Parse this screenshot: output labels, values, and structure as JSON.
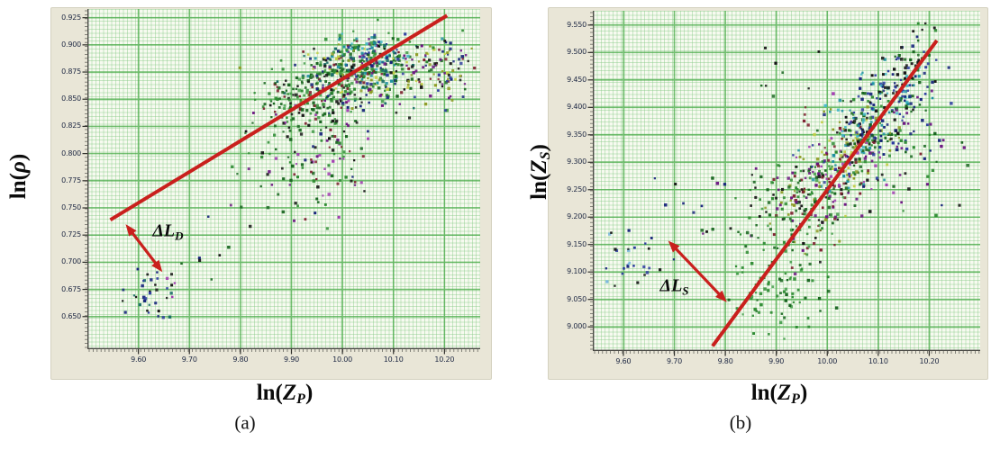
{
  "seed": 1337,
  "colors": {
    "page_bg": "#ffffff",
    "panel_bg": "#e9e6d7",
    "panel_border": "#d4d1bf",
    "plot_bg": "#f7faf0",
    "grid_minor": "#82c882",
    "grid_major": "#46aa46",
    "axis": "#4a4a45",
    "tick_text": "#1d2742",
    "red": "#c9201d",
    "text": "#0b0b0b"
  },
  "palette": [
    "#18651f",
    "#2e8b33",
    "#4aa050",
    "#176b65",
    "#1b8fa0",
    "#45b8c8",
    "#15227a",
    "#2b3a9e",
    "#141414",
    "#6a1480",
    "#a03ab0",
    "#7c1f2e",
    "#8c9a22",
    "#c2ce45",
    "#79b7dd"
  ],
  "point_size": {
    "min": 2.2,
    "max": 3.6
  },
  "chart_data": [
    {
      "id": "a",
      "type": "scatter",
      "caption": "(a)",
      "xlabel": {
        "pre": "ln(",
        "var": "Z",
        "sub": "P",
        "post": ")"
      },
      "ylabel": {
        "pre": "ln(",
        "var": "ρ",
        "sub": "",
        "post": ")"
      },
      "xlim": [
        9.5,
        10.27
      ],
      "ylim": [
        0.62,
        0.933
      ],
      "xticks": [
        "9.60",
        "9.70",
        "9.80",
        "9.90",
        "10.00",
        "10.10",
        "10.20"
      ],
      "yticks": [
        "0.925",
        "0.900",
        "0.875",
        "0.850",
        "0.825",
        "0.800",
        "0.775",
        "0.750",
        "0.725",
        "0.700",
        "0.675",
        "0.650"
      ],
      "grid": true,
      "legend": null,
      "trend_line": {
        "x1": 9.545,
        "y1": 0.739,
        "x2": 10.205,
        "y2": 0.927
      },
      "annotation": {
        "arrow": {
          "x1": 9.575,
          "y1": 0.735,
          "x2": 9.647,
          "y2": 0.691
        },
        "label": {
          "pre": "Δ",
          "var": "L",
          "sub": "D",
          "x": 9.658,
          "y": 0.728
        }
      },
      "clusters": [
        {
          "cx": 10.03,
          "cy": 0.872,
          "sx": 0.055,
          "sy": 0.016,
          "n": 380,
          "colors": [
            0,
            1,
            1,
            2,
            0,
            3,
            12,
            11,
            9,
            6,
            8,
            13,
            4
          ]
        },
        {
          "cx": 9.925,
          "cy": 0.85,
          "sx": 0.04,
          "sy": 0.014,
          "n": 140,
          "colors": [
            0,
            1,
            2,
            0,
            8,
            11
          ]
        },
        {
          "cx": 10.06,
          "cy": 0.893,
          "sx": 0.035,
          "sy": 0.009,
          "n": 70,
          "colors": [
            4,
            5,
            3,
            7,
            1
          ]
        },
        {
          "cx": 10.16,
          "cy": 0.873,
          "sx": 0.05,
          "sy": 0.014,
          "n": 90,
          "colors": [
            6,
            8,
            9,
            12,
            13,
            0,
            11,
            7
          ]
        },
        {
          "cx": 9.975,
          "cy": 0.805,
          "sx": 0.04,
          "sy": 0.032,
          "n": 100,
          "colors": [
            0,
            8,
            9,
            10,
            1,
            11,
            6
          ]
        },
        {
          "cx": 9.87,
          "cy": 0.8,
          "sx": 0.05,
          "sy": 0.03,
          "n": 45,
          "colors": [
            0,
            1,
            8,
            9
          ]
        },
        {
          "cx": 9.613,
          "cy": 0.668,
          "sx": 0.022,
          "sy": 0.013,
          "n": 30,
          "colors": [
            6,
            8,
            7,
            3
          ]
        },
        {
          "cx": 9.665,
          "cy": 0.673,
          "sx": 0.012,
          "sy": 0.008,
          "n": 7,
          "colors": [
            9,
            10,
            8
          ]
        },
        {
          "cx": 9.75,
          "cy": 0.705,
          "sx": 0.04,
          "sy": 0.02,
          "n": 9,
          "colors": [
            8,
            0,
            6
          ]
        },
        {
          "cx": 10.21,
          "cy": 0.887,
          "sx": 0.03,
          "sy": 0.012,
          "n": 25,
          "colors": [
            9,
            6,
            8,
            12,
            1
          ]
        }
      ]
    },
    {
      "id": "b",
      "type": "scatter",
      "caption": "(b)",
      "xlabel": {
        "pre": "ln(",
        "var": "Z",
        "sub": "P",
        "post": ")"
      },
      "ylabel": {
        "pre": "ln(",
        "var": "Z",
        "sub": "S",
        "post": ")"
      },
      "xlim": [
        9.54,
        10.3
      ],
      "ylim": [
        8.956,
        9.576
      ],
      "xticks": [
        "9.60",
        "9.70",
        "9.80",
        "9.90",
        "10.00",
        "10.10",
        "10.20"
      ],
      "yticks": [
        "9.550",
        "9.500",
        "9.450",
        "9.400",
        "9.350",
        "9.300",
        "9.250",
        "9.200",
        "9.150",
        "9.100",
        "9.050",
        "9.000"
      ],
      "grid": true,
      "legend": null,
      "trend_line": {
        "x1": 9.775,
        "y1": 8.965,
        "x2": 10.215,
        "y2": 9.522
      },
      "annotation": {
        "arrow": {
          "x1": 9.688,
          "y1": 9.157,
          "x2": 9.803,
          "y2": 9.045
        },
        "label": {
          "pre": "Δ",
          "var": "L",
          "sub": "S",
          "x": 9.7,
          "y": 9.073
        }
      },
      "clusters": [
        {
          "cx": 9.965,
          "cy": 9.225,
          "sx": 0.04,
          "sy": 0.038,
          "n": 150,
          "colors": [
            0,
            1,
            2,
            9,
            11,
            8,
            12
          ]
        },
        {
          "cx": 10.03,
          "cy": 9.3,
          "sx": 0.042,
          "sy": 0.04,
          "n": 200,
          "colors": [
            0,
            1,
            12,
            9,
            10,
            11,
            4,
            7,
            8,
            13
          ]
        },
        {
          "cx": 10.08,
          "cy": 9.365,
          "sx": 0.038,
          "sy": 0.035,
          "n": 150,
          "colors": [
            0,
            1,
            4,
            5,
            7,
            6,
            12,
            8
          ]
        },
        {
          "cx": 10.13,
          "cy": 9.425,
          "sx": 0.033,
          "sy": 0.03,
          "n": 90,
          "colors": [
            7,
            6,
            5,
            4,
            8,
            0
          ]
        },
        {
          "cx": 10.17,
          "cy": 9.465,
          "sx": 0.028,
          "sy": 0.028,
          "n": 40,
          "colors": [
            6,
            8,
            7,
            0
          ]
        },
        {
          "cx": 10.16,
          "cy": 9.33,
          "sx": 0.05,
          "sy": 0.05,
          "n": 60,
          "colors": [
            6,
            8,
            0,
            1,
            9
          ]
        },
        {
          "cx": 9.895,
          "cy": 9.21,
          "sx": 0.05,
          "sy": 0.05,
          "n": 60,
          "colors": [
            0,
            1,
            8,
            9
          ]
        },
        {
          "cx": 9.885,
          "cy": 9.08,
          "sx": 0.04,
          "sy": 0.05,
          "n": 65,
          "colors": [
            0,
            1,
            2,
            1
          ]
        },
        {
          "cx": 9.95,
          "cy": 9.05,
          "sx": 0.04,
          "sy": 0.03,
          "n": 20,
          "colors": [
            0,
            1
          ]
        },
        {
          "cx": 9.612,
          "cy": 9.115,
          "sx": 0.033,
          "sy": 0.026,
          "n": 28,
          "colors": [
            6,
            8,
            14,
            7
          ]
        },
        {
          "cx": 9.72,
          "cy": 9.23,
          "sx": 0.03,
          "sy": 0.03,
          "n": 8,
          "colors": [
            8,
            6
          ]
        },
        {
          "cx": 10.19,
          "cy": 9.545,
          "sx": 0.025,
          "sy": 0.012,
          "n": 6,
          "colors": [
            8,
            6,
            1
          ]
        },
        {
          "cx": 9.95,
          "cy": 9.48,
          "sx": 0.05,
          "sy": 0.03,
          "n": 8,
          "colors": [
            8,
            0
          ]
        }
      ]
    }
  ]
}
